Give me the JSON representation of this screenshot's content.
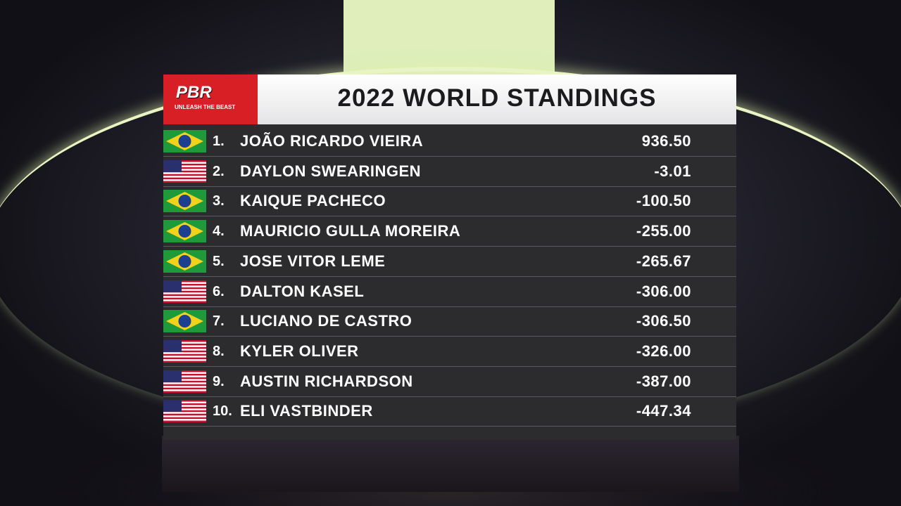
{
  "logo": {
    "brand": "PBR",
    "tagline": "UNLEASH THE BEAST"
  },
  "title": "2022 WORLD STANDINGS",
  "rows": [
    {
      "flag": "brazil",
      "rank": "1.",
      "name": "JOÃO RICARDO VIEIRA",
      "score": "936.50"
    },
    {
      "flag": "usa",
      "rank": "2.",
      "name": "DAYLON SWEARINGEN",
      "score": "-3.01"
    },
    {
      "flag": "brazil",
      "rank": "3.",
      "name": "KAIQUE PACHECO",
      "score": "-100.50"
    },
    {
      "flag": "brazil",
      "rank": "4.",
      "name": "MAURICIO GULLA MOREIRA",
      "score": "-255.00"
    },
    {
      "flag": "brazil",
      "rank": "5.",
      "name": "JOSE VITOR LEME",
      "score": "-265.67"
    },
    {
      "flag": "usa",
      "rank": "6.",
      "name": "DALTON KASEL",
      "score": "-306.00"
    },
    {
      "flag": "brazil",
      "rank": "7.",
      "name": "LUCIANO DE CASTRO",
      "score": "-306.50"
    },
    {
      "flag": "usa",
      "rank": "8.",
      "name": "KYLER OLIVER",
      "score": "-326.00"
    },
    {
      "flag": "usa",
      "rank": "9.",
      "name": "AUSTIN RICHARDSON",
      "score": "-387.00"
    },
    {
      "flag": "usa",
      "rank": "10.",
      "name": "ELI VASTBINDER",
      "score": "-447.34"
    }
  ]
}
